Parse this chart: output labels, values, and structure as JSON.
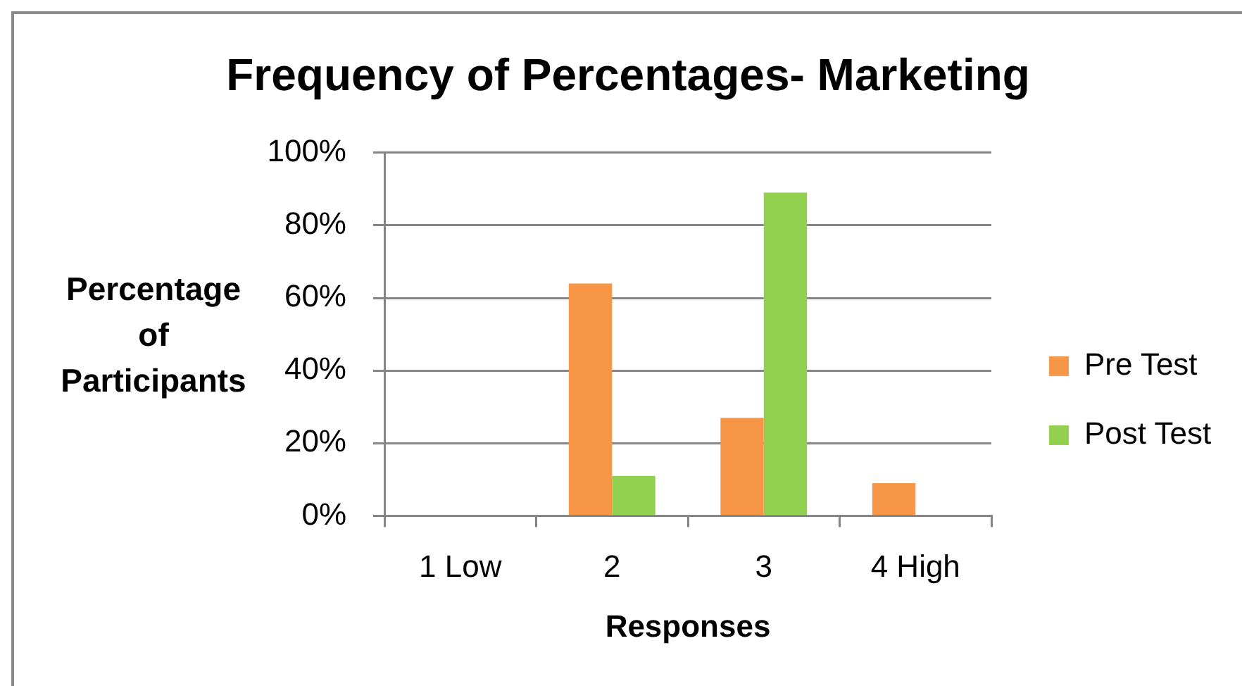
{
  "chart_data": {
    "type": "bar",
    "title": "Frequency of Percentages- Marketing",
    "xlabel": "Responses",
    "ylabel": "Percentage of Participants",
    "categories": [
      "1 Low",
      "2",
      "3",
      "4 High"
    ],
    "series": [
      {
        "name": "Pre Test",
        "color": "#f79646",
        "values": [
          0,
          64,
          27,
          9
        ]
      },
      {
        "name": "Post Test",
        "color": "#92d050",
        "values": [
          0,
          11,
          89,
          0
        ]
      }
    ],
    "ylim": [
      0,
      100
    ],
    "yticks": [
      {
        "value": 0,
        "label": "0%"
      },
      {
        "value": 20,
        "label": "20%"
      },
      {
        "value": 40,
        "label": "40%"
      },
      {
        "value": 60,
        "label": "60%"
      },
      {
        "value": 80,
        "label": "80%"
      },
      {
        "value": 100,
        "label": "100%"
      }
    ],
    "grid": "y",
    "legend": "right"
  }
}
